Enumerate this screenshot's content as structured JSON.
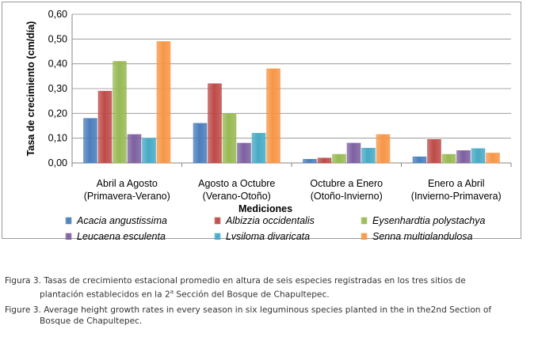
{
  "chart_data": {
    "type": "bar",
    "title": "",
    "xlabel": "Mediciones",
    "ylabel": "Tasa de crecimiento (cm/día)",
    "ylim": [
      0,
      0.6
    ],
    "yticks": [
      "0,00",
      "0,10",
      "0,20",
      "0,30",
      "0,40",
      "0,50",
      "0,60"
    ],
    "ytick_values": [
      0,
      0.1,
      0.2,
      0.3,
      0.4,
      0.5,
      0.6
    ],
    "categories": [
      {
        "line1": "Abril a Agosto",
        "line2": "(Primavera-Verano)"
      },
      {
        "line1": "Agosto a Octubre",
        "line2": "(Verano-Otoño)"
      },
      {
        "line1": "Octubre a Enero",
        "line2": "(Otoño-Invierno)"
      },
      {
        "line1": "Enero a Abril",
        "line2": "(Invierno-Primavera)"
      }
    ],
    "series": [
      {
        "name": "Acacia angustissima",
        "color": "#4a7ebb",
        "values": [
          0.18,
          0.16,
          0.015,
          0.025
        ]
      },
      {
        "name": "Albizzia occidentalis",
        "color": "#be4b48",
        "values": [
          0.29,
          0.32,
          0.02,
          0.095
        ]
      },
      {
        "name": "Eysenhardtia polystachya",
        "color": "#98b954",
        "values": [
          0.41,
          0.2,
          0.035,
          0.035
        ]
      },
      {
        "name": "Leucaena esculenta",
        "color": "#7d60a0",
        "values": [
          0.115,
          0.08,
          0.08,
          0.05
        ]
      },
      {
        "name": "Lysiloma divaricata",
        "color": "#46aac4",
        "values": [
          0.1,
          0.12,
          0.06,
          0.058
        ]
      },
      {
        "name": "Senna multiglandulosa",
        "color": "#f79646",
        "values": [
          0.49,
          0.38,
          0.115,
          0.04
        ]
      }
    ],
    "legend": "bottom",
    "grid": true
  },
  "captions": {
    "es_label": "Figura 3.",
    "es_line1": "Tasas de crecimiento estacional promedio en altura de seis especies registradas en los tres sitios de",
    "es_line2_pre": "plantación establecidos en la 2",
    "es_sup": "a",
    "es_line2_post": " Sección del Bosque de Chapultepec.",
    "en_label": "Figure 3.",
    "en_line1": "Average height growth rates in every season in six leguminous species planted in the in the2nd Section of",
    "en_line2": "Bosque de Chapultepec."
  }
}
